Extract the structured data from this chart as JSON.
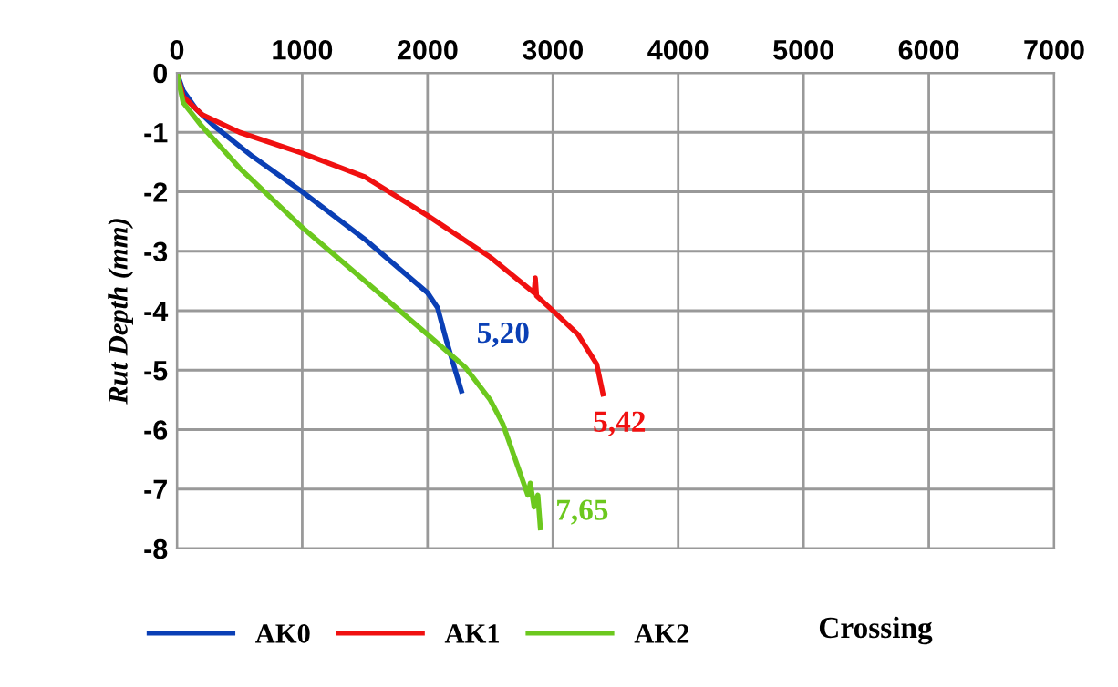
{
  "chart_data": {
    "type": "line",
    "xlabel": "Crossing",
    "ylabel": "Rut Depth (mm)",
    "xlim": [
      0,
      7000
    ],
    "ylim": [
      -8,
      0
    ],
    "xticks": [
      0,
      1000,
      2000,
      3000,
      4000,
      5000,
      6000,
      7000
    ],
    "yticks": [
      -8,
      -7,
      -6,
      -5,
      -4,
      -3,
      -2,
      -1,
      0
    ],
    "grid": true,
    "legend": "bottom",
    "marker": "none",
    "line_style": "solid",
    "series": [
      {
        "name": "AK0",
        "color": "#0a3fb5",
        "x": [
          0,
          50,
          150,
          300,
          600,
          1000,
          1500,
          2000,
          2080,
          2150,
          2270
        ],
        "values": [
          0,
          -0.3,
          -0.6,
          -0.9,
          -1.4,
          -2.0,
          -2.8,
          -3.7,
          -3.95,
          -4.5,
          -5.35
        ]
      },
      {
        "name": "AK1",
        "color": "#f01010",
        "x": [
          0,
          50,
          200,
          500,
          1000,
          1500,
          2000,
          2500,
          2850,
          2860,
          2870,
          3000,
          3200,
          3350,
          3400
        ],
        "values": [
          0,
          -0.4,
          -0.7,
          -1.0,
          -1.35,
          -1.75,
          -2.4,
          -3.1,
          -3.7,
          -3.45,
          -3.75,
          -4.0,
          -4.4,
          -4.9,
          -5.4
        ]
      },
      {
        "name": "AK2",
        "color": "#6cc81e",
        "x": [
          0,
          50,
          200,
          500,
          1000,
          1500,
          2000,
          2300,
          2500,
          2600,
          2700,
          2800,
          2820,
          2850,
          2880,
          2900
        ],
        "values": [
          0,
          -0.5,
          -0.9,
          -1.6,
          -2.6,
          -3.5,
          -4.4,
          -4.95,
          -5.5,
          -5.9,
          -6.5,
          -7.1,
          -6.9,
          -7.3,
          -7.1,
          -7.65
        ]
      }
    ],
    "annotations": [
      "5,20",
      "5,42",
      "7,65"
    ]
  }
}
